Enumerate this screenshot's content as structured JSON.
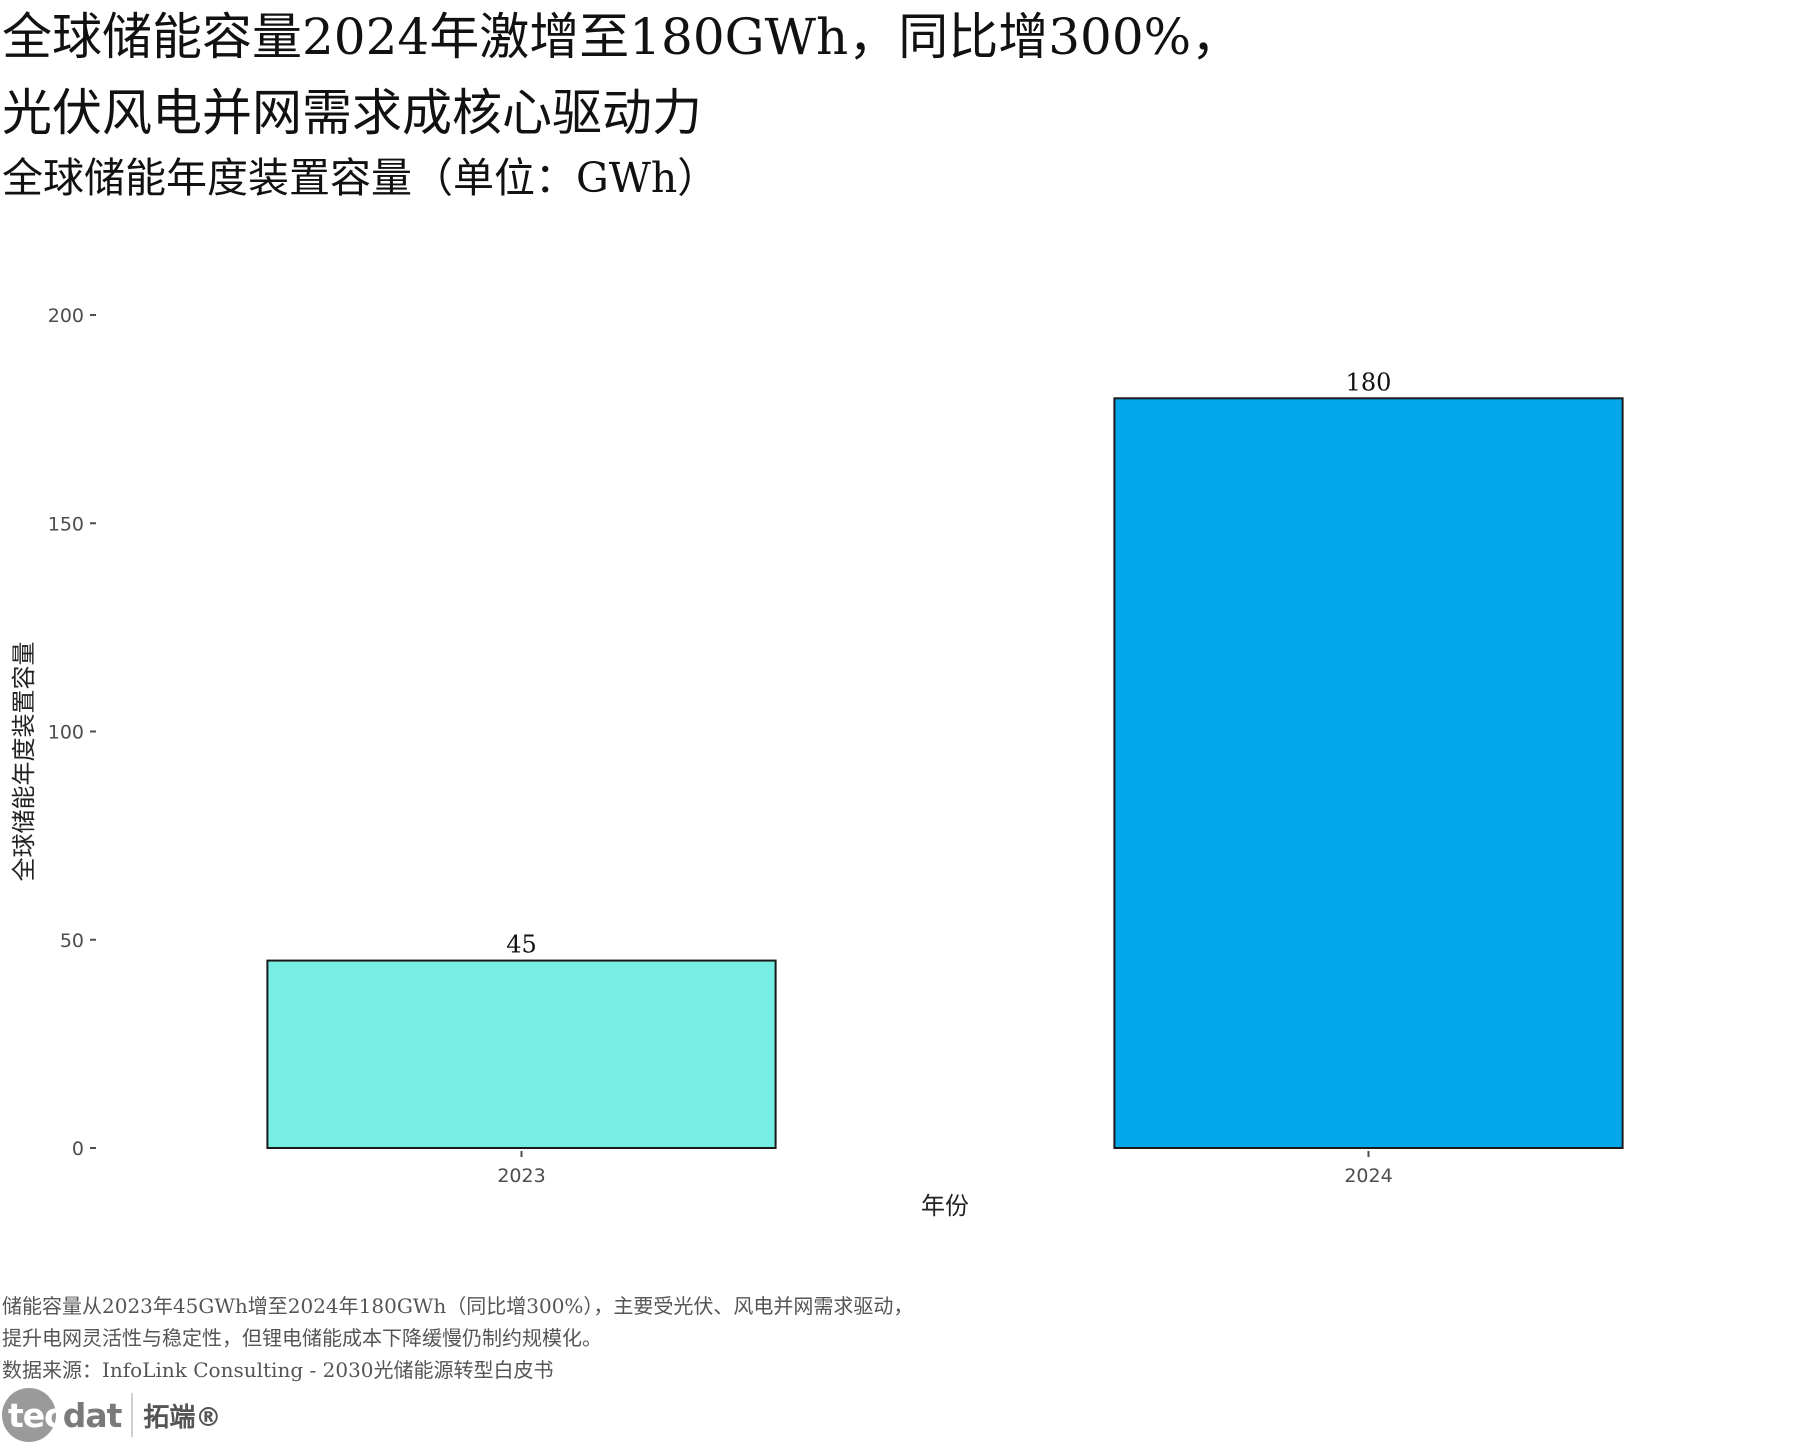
{
  "title_line1": "全球储能容量2024年激增至180GWh，同比增300%，",
  "title_line2": "光伏风电并网需求成核心驱动力",
  "subtitle": "全球储能年度装置容量（单位：GWh）",
  "chart_data": {
    "type": "bar",
    "categories": [
      "2023",
      "2024"
    ],
    "values": [
      45,
      180
    ],
    "data_labels": [
      "45",
      "180"
    ],
    "bar_colors": [
      "#76EEE3",
      "#00A8EB"
    ],
    "bar_outline": "#1a1a1a",
    "xlabel": "年份",
    "ylabel": "全球储能年度装置容量",
    "ylim": [
      0,
      200
    ],
    "yticks": [
      0,
      50,
      100,
      150,
      200
    ],
    "grid": false,
    "legend": "none"
  },
  "caption": {
    "line1": "储能容量从2023年45GWh增至2024年180GWh（同比增300%），主要受光伏、风电并网需求驱动，",
    "line2": "提升电网灵活性与稳定性，但锂电储能成本下降缓慢仍制约规模化。",
    "line3": "数据来源：InfoLink Consulting - 2030光储能源转型白皮书"
  },
  "logo": {
    "brand_circle": "tec",
    "brand_rest": "dat",
    "brand_cn": "拓端®"
  }
}
